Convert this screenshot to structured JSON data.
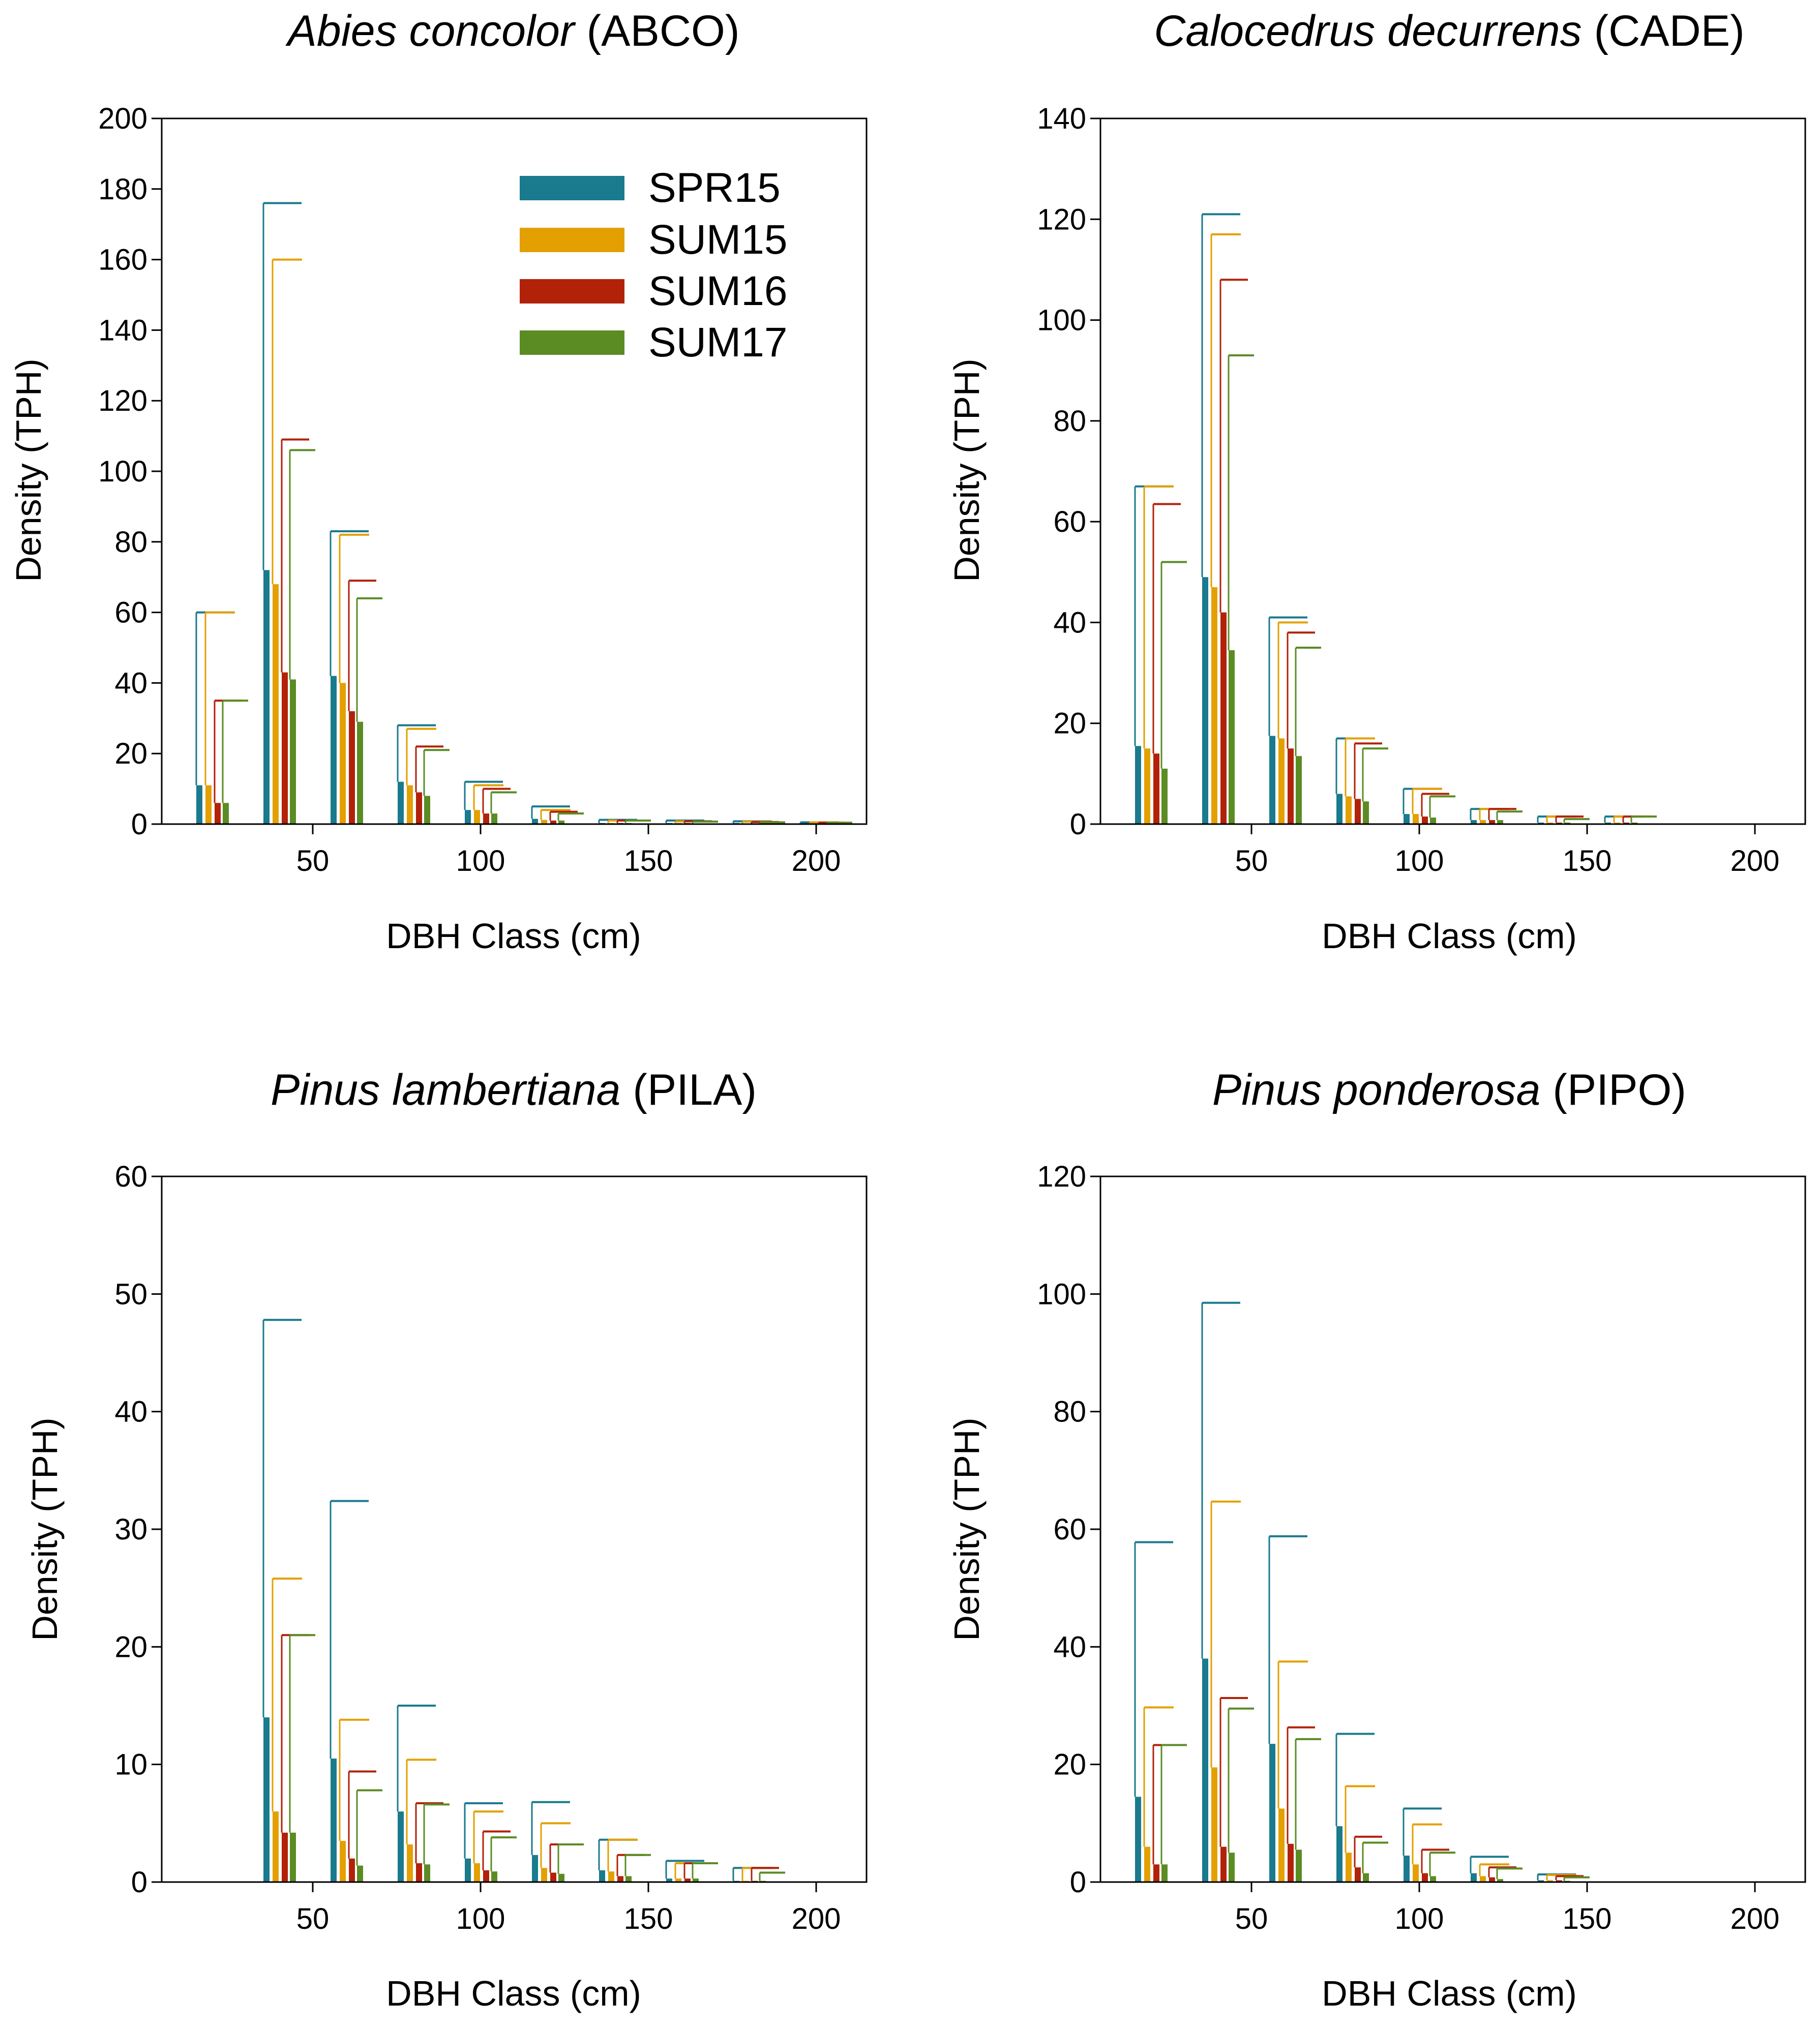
{
  "colors": {
    "SPR15": "#1a7a8e",
    "SUM15": "#e3a000",
    "SUM16": "#b22208",
    "SUM17": "#5b8c24"
  },
  "legend": [
    "SPR15",
    "SUM15",
    "SUM16",
    "SUM17"
  ],
  "chart_data": [
    {
      "type": "bar",
      "title_italic": "Abies concolor",
      "title_code": "(ABCO)",
      "xlabel": "DBH Class (cm)",
      "ylabel": "Density (TPH)",
      "ylim": [
        0,
        200
      ],
      "yticks": [
        0,
        20,
        40,
        60,
        80,
        100,
        120,
        140,
        160,
        180,
        200
      ],
      "xlim": [
        5,
        215
      ],
      "xticks": [
        50,
        100,
        150,
        200
      ],
      "categories": [
        20,
        40,
        60,
        80,
        100,
        120,
        140,
        160,
        180,
        200
      ],
      "series": [
        {
          "name": "SPR15",
          "values": [
            11,
            72,
            42,
            12,
            4,
            1.5,
            0.3,
            0.3,
            0.3,
            0.2
          ],
          "errors": [
            60,
            176,
            83,
            28,
            12,
            5,
            1.2,
            1,
            0.8,
            0.5
          ]
        },
        {
          "name": "SUM15",
          "values": [
            11,
            68,
            40,
            11,
            4,
            1.2,
            0.3,
            0.3,
            0.2,
            0.2
          ],
          "errors": [
            60,
            160,
            82,
            27,
            11,
            4,
            1,
            0.8,
            0.7,
            0.5
          ]
        },
        {
          "name": "SUM16",
          "values": [
            6,
            43,
            32,
            9,
            3,
            1,
            0.3,
            0.3,
            0.2,
            0.2
          ],
          "errors": [
            35,
            109,
            69,
            22,
            10,
            3.5,
            1,
            0.8,
            0.6,
            0.4
          ]
        },
        {
          "name": "SUM17",
          "values": [
            6,
            41,
            29,
            8,
            3,
            1,
            0.3,
            0.2,
            0.2,
            0.2
          ],
          "errors": [
            35,
            106,
            64,
            21,
            9,
            3,
            1,
            0.7,
            0.5,
            0.4
          ]
        }
      ]
    },
    {
      "type": "bar",
      "title_italic": "Calocedrus decurrens",
      "title_code": "(CADE)",
      "xlabel": "DBH Class (cm)",
      "ylabel": "Density (TPH)",
      "ylim": [
        0,
        140
      ],
      "yticks": [
        0,
        20,
        40,
        60,
        80,
        100,
        120,
        140
      ],
      "xlim": [
        5,
        215
      ],
      "xticks": [
        50,
        100,
        150,
        200
      ],
      "categories": [
        20,
        40,
        60,
        80,
        100,
        120,
        140,
        160,
        180,
        200
      ],
      "series": [
        {
          "name": "SPR15",
          "values": [
            15.5,
            49,
            17.5,
            6,
            2,
            0.8,
            0.3,
            0.3,
            0,
            0
          ],
          "errors": [
            67,
            121,
            41,
            17,
            7,
            3,
            1.5,
            1.5,
            0,
            0
          ]
        },
        {
          "name": "SUM15",
          "values": [
            15,
            47,
            17,
            5.5,
            2,
            0.8,
            0.3,
            0.3,
            0,
            0
          ],
          "errors": [
            67,
            117,
            40,
            17,
            7,
            3,
            1.5,
            1.5,
            0,
            0
          ]
        },
        {
          "name": "SUM16",
          "values": [
            14,
            42,
            15,
            5,
            1.5,
            0.8,
            0.3,
            0.3,
            0,
            0
          ],
          "errors": [
            63.5,
            108,
            38,
            16,
            6,
            3,
            1.5,
            1.5,
            0,
            0
          ]
        },
        {
          "name": "SUM17",
          "values": [
            11,
            34.5,
            13.5,
            4.5,
            1.3,
            0.8,
            0.3,
            0.3,
            0,
            0
          ],
          "errors": [
            52,
            93,
            35,
            15,
            5.5,
            2.5,
            1,
            1.5,
            0,
            0
          ]
        }
      ]
    },
    {
      "type": "bar",
      "title_italic": "Pinus lambertiana",
      "title_code": "(PILA)",
      "xlabel": "DBH Class (cm)",
      "ylabel": "Density (TPH)",
      "ylim": [
        0,
        60
      ],
      "yticks": [
        0,
        10,
        20,
        30,
        40,
        50,
        60
      ],
      "xlim": [
        5,
        215
      ],
      "xticks": [
        50,
        100,
        150,
        200
      ],
      "categories": [
        40,
        60,
        80,
        100,
        120,
        140,
        160,
        180
      ],
      "series": [
        {
          "name": "SPR15",
          "values": [
            14,
            10.5,
            6,
            2,
            2.3,
            1,
            0.3,
            0.1
          ],
          "errors": [
            47.8,
            32.4,
            15,
            6.7,
            6.8,
            3.6,
            1.8,
            1.2
          ]
        },
        {
          "name": "SUM15",
          "values": [
            6,
            3.5,
            3.2,
            1.6,
            1.2,
            0.9,
            0.3,
            0.1
          ],
          "errors": [
            25.8,
            13.8,
            10.4,
            6,
            5,
            3.6,
            1.6,
            1.2
          ]
        },
        {
          "name": "SUM16",
          "values": [
            4.2,
            2,
            1.6,
            1,
            0.8,
            0.5,
            0.3,
            0.1
          ],
          "errors": [
            21,
            9.4,
            6.7,
            4.3,
            3.2,
            2.3,
            1.6,
            1.2
          ]
        },
        {
          "name": "SUM17",
          "values": [
            4.2,
            1.4,
            1.5,
            0.9,
            0.7,
            0.5,
            0.3,
            0.1
          ],
          "errors": [
            21,
            7.8,
            6.6,
            3.8,
            3.2,
            2.3,
            1.6,
            0.8
          ]
        }
      ]
    },
    {
      "type": "bar",
      "title_italic": "Pinus ponderosa",
      "title_code": "(PIPO)",
      "xlabel": "DBH Class (cm)",
      "ylabel": "Density (TPH)",
      "ylim": [
        0,
        120
      ],
      "yticks": [
        0,
        20,
        40,
        60,
        80,
        100,
        120
      ],
      "xlim": [
        5,
        215
      ],
      "xticks": [
        50,
        100,
        150,
        200
      ],
      "categories": [
        20,
        40,
        60,
        80,
        100,
        120,
        140
      ],
      "series": [
        {
          "name": "SPR15",
          "values": [
            14.5,
            38,
            23.5,
            9.5,
            4.5,
            1.5,
            0.3
          ],
          "errors": [
            57.8,
            98.5,
            58.8,
            25.2,
            12.5,
            4.3,
            1.3
          ]
        },
        {
          "name": "SUM15",
          "values": [
            6,
            19.5,
            12.5,
            5,
            3,
            1,
            0.3
          ],
          "errors": [
            29.7,
            64.7,
            37.5,
            16.3,
            9.8,
            3,
            1.2
          ]
        },
        {
          "name": "SUM16",
          "values": [
            3,
            6,
            6.5,
            2.5,
            1.5,
            0.8,
            0.3
          ],
          "errors": [
            23.3,
            31.3,
            26.3,
            7.7,
            5.5,
            2.5,
            1
          ]
        },
        {
          "name": "SUM17",
          "values": [
            3,
            5,
            5.5,
            1.5,
            1,
            0.5,
            0.2
          ],
          "errors": [
            23.3,
            29.5,
            24.3,
            6.7,
            5,
            2.3,
            0.8
          ]
        }
      ]
    }
  ]
}
